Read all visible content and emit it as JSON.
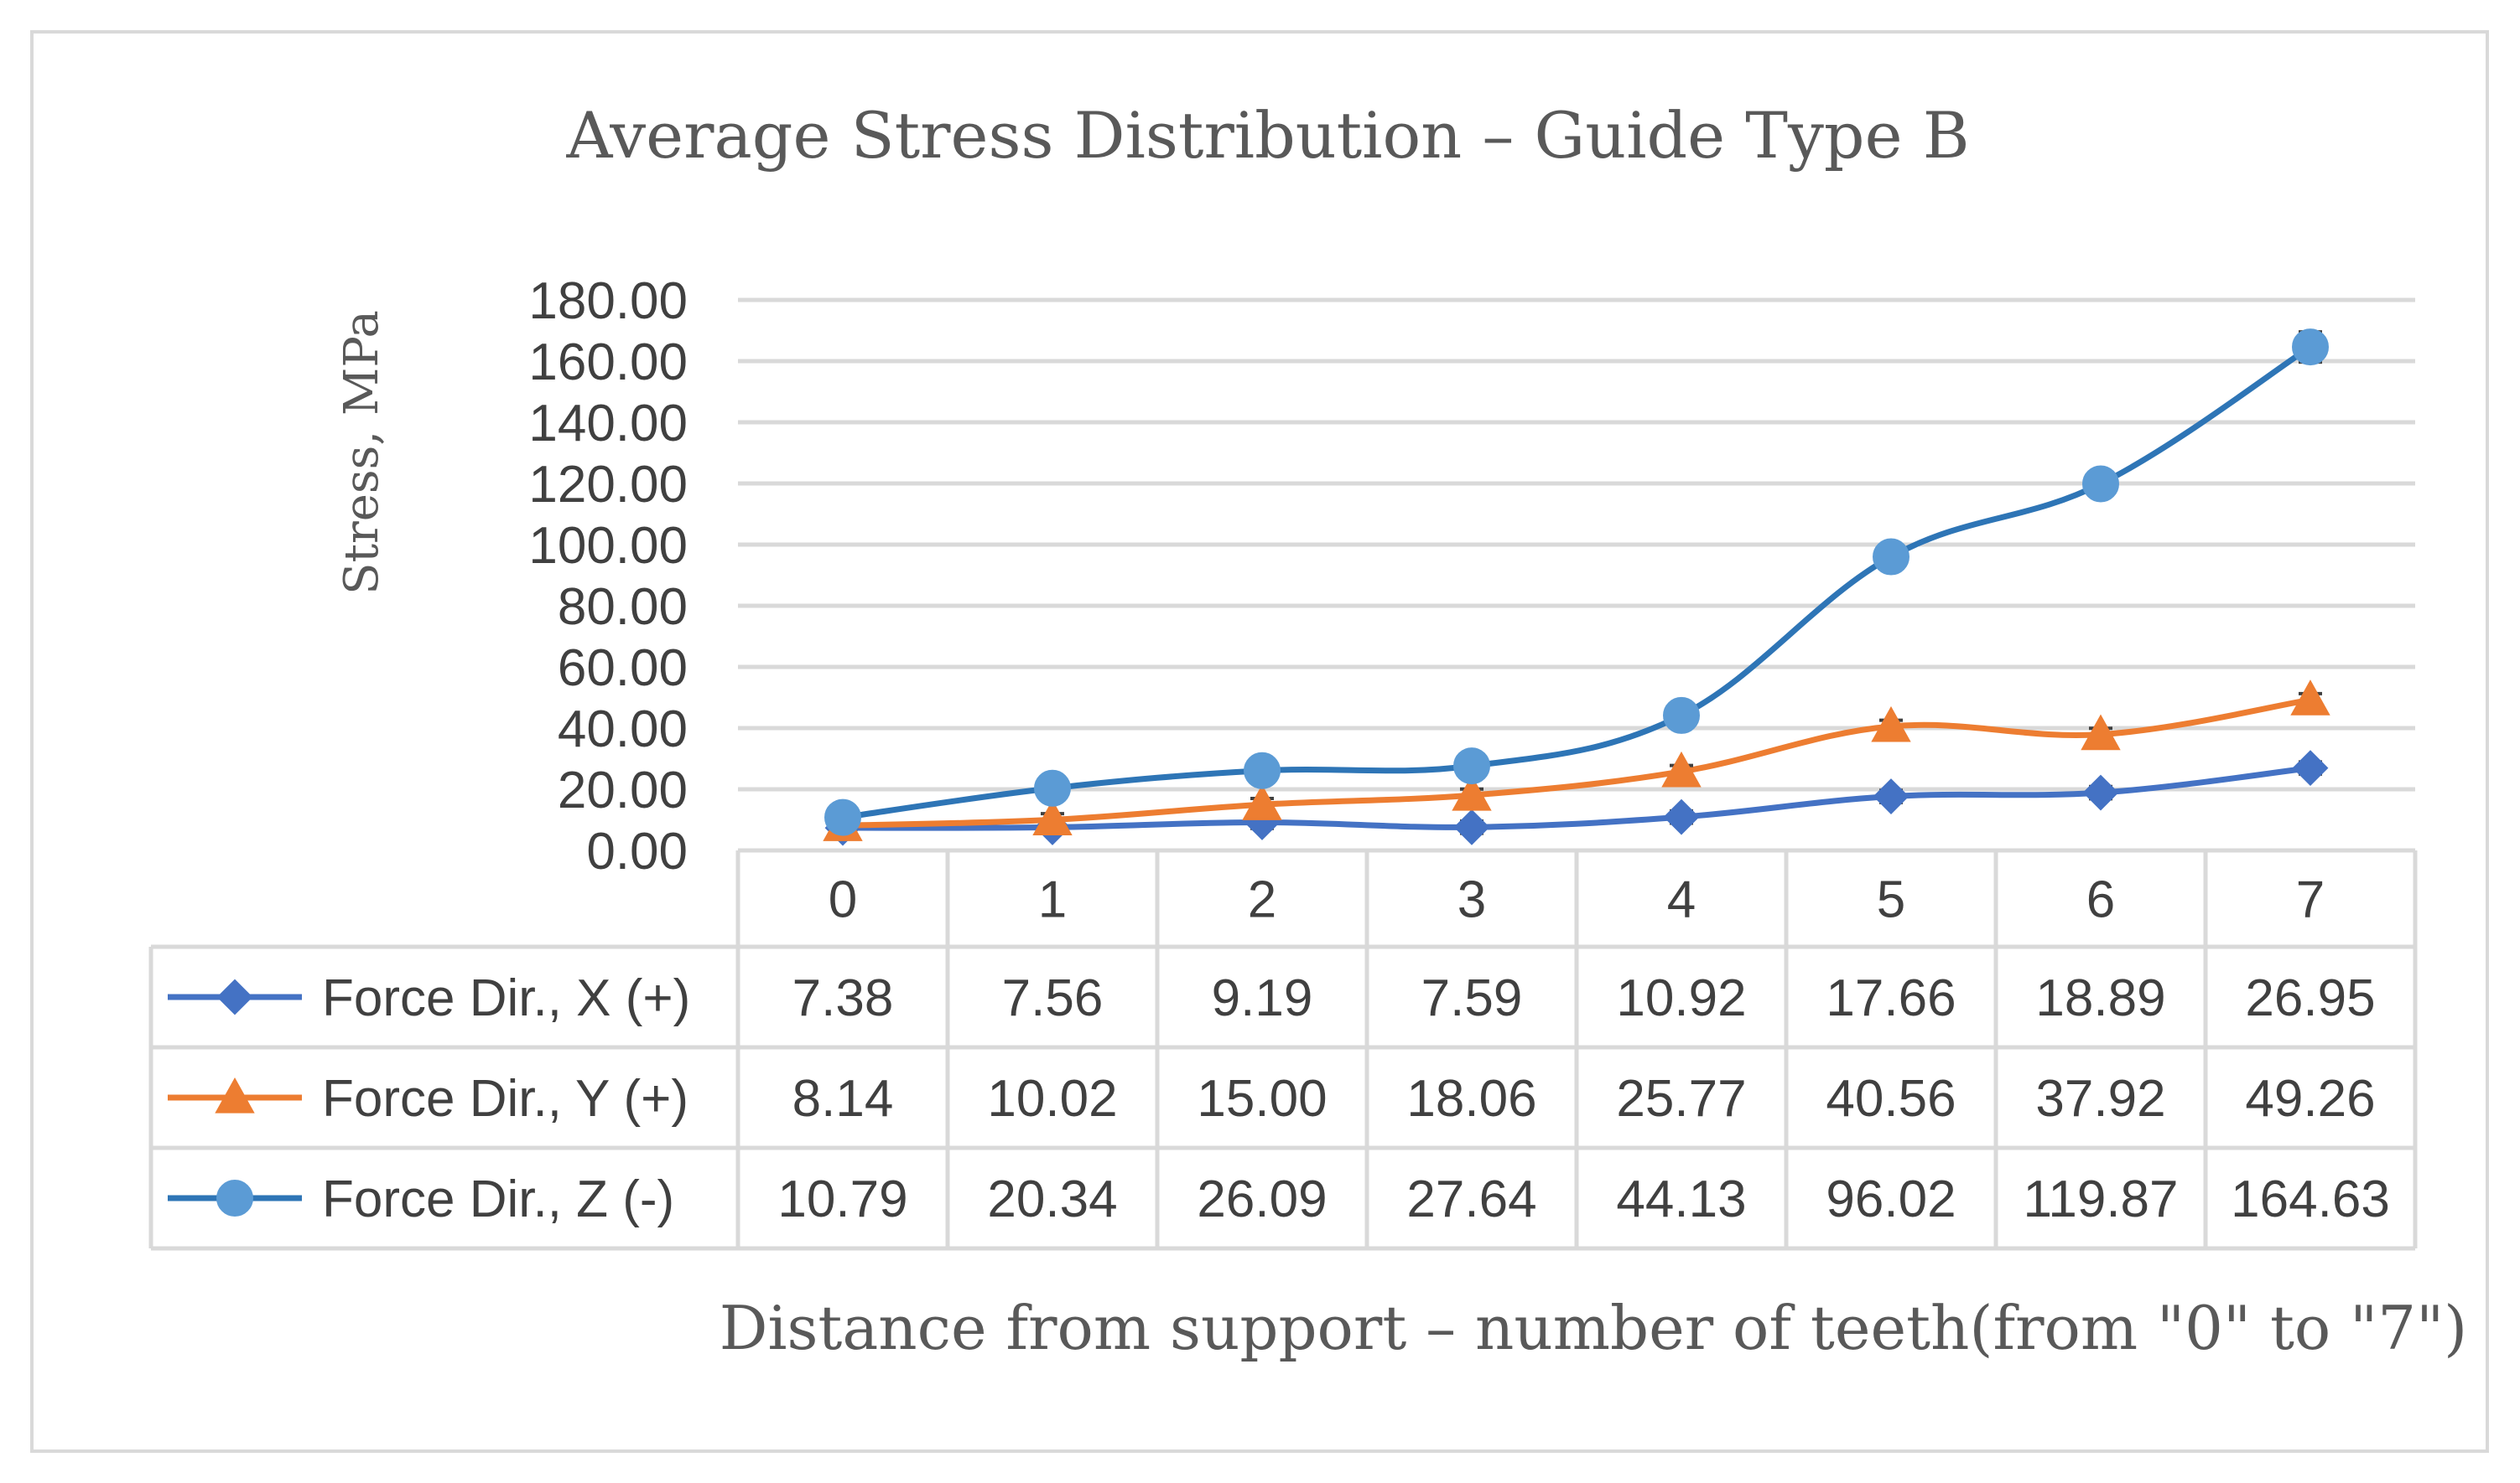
{
  "chart_data": {
    "type": "line",
    "title": "Average Stress Distribution – Guide Type B",
    "ylabel": "Stress, MPa",
    "xlabel": "Distance from support – number of teeth(from \"0\" to \"7\")",
    "categories": [
      "0",
      "1",
      "2",
      "3",
      "4",
      "5",
      "6",
      "7"
    ],
    "ylim": [
      0,
      180
    ],
    "yticks": [
      "0.00",
      "20.00",
      "40.00",
      "60.00",
      "80.00",
      "100.00",
      "120.00",
      "140.00",
      "160.00",
      "180.00"
    ],
    "grid": true,
    "legend": "data-table",
    "series": [
      {
        "name": "Force Dir., X (+)",
        "marker": "diamond",
        "color": "#4472C4",
        "values": [
          7.38,
          7.56,
          9.19,
          7.59,
          10.92,
          17.66,
          18.89,
          26.95
        ],
        "labels": [
          "7.38",
          "7.56",
          "9.19",
          "7.59",
          "10.92",
          "17.66",
          "18.89",
          "26.95"
        ]
      },
      {
        "name": "Force Dir., Y (+)",
        "marker": "triangle",
        "color": "#ED7D31",
        "values": [
          8.14,
          10.02,
          15.0,
          18.06,
          25.77,
          40.56,
          37.92,
          49.26
        ],
        "labels": [
          "8.14",
          "10.02",
          "15.00",
          "18.06",
          "25.77",
          "40.56",
          "37.92",
          "49.26"
        ]
      },
      {
        "name": "Force Dir., Z (-)",
        "marker": "circle",
        "color": "#2E75B6",
        "marker_color": "#5B9BD5",
        "values": [
          10.79,
          20.34,
          26.09,
          27.64,
          44.13,
          96.02,
          119.87,
          164.63
        ],
        "labels": [
          "10.79",
          "20.34",
          "26.09",
          "27.64",
          "44.13",
          "96.02",
          "119.87",
          "164.63"
        ]
      }
    ]
  }
}
